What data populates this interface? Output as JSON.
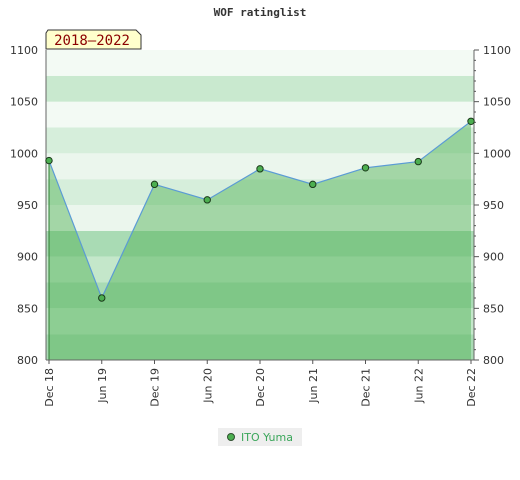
{
  "chart_data": {
    "type": "area",
    "title": "WOF ratinglist",
    "period_label": "2018–2022",
    "categories": [
      "Dec 18",
      "Jun 19",
      "Dec 19",
      "Jun 20",
      "Dec 20",
      "Jun 21",
      "Dec 21",
      "Jun 22",
      "Dec 22"
    ],
    "series": [
      {
        "name": "ITO Yuma",
        "values": [
          993,
          860,
          970,
          955,
          985,
          970,
          986,
          992,
          1031
        ]
      }
    ],
    "ylim": [
      800,
      1100
    ],
    "y_ticks": [
      800,
      850,
      900,
      950,
      1000,
      1050,
      1100
    ],
    "xlabel": "",
    "ylabel": "",
    "grid": true,
    "legend_position": "bottom",
    "colors": {
      "line": "#5b9bd5",
      "area": "#4caf50",
      "marker": "#4caf50",
      "band_dark": "#9fd4aa",
      "band_light": "#e6f4e8"
    }
  }
}
